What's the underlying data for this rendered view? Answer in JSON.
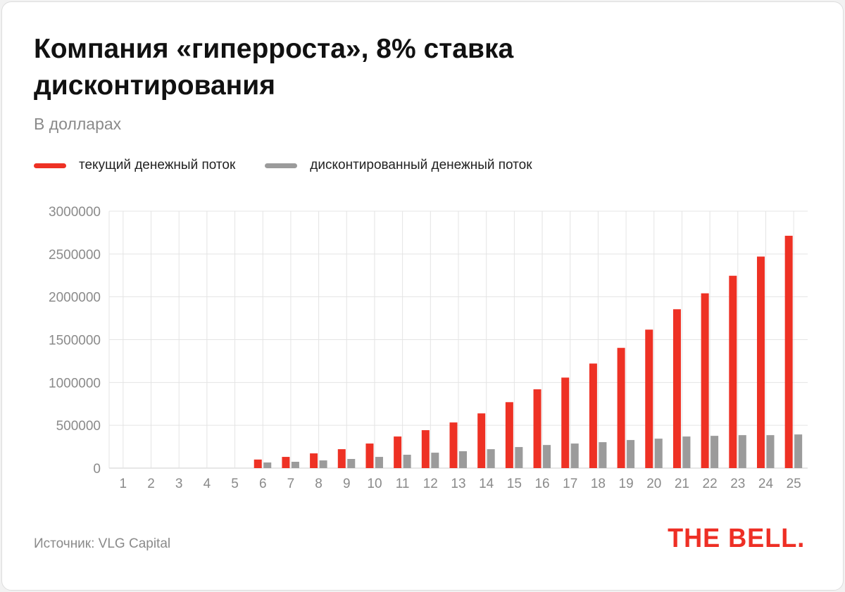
{
  "header": {
    "title": "Компания «гиперроста», 8% ставка дисконтирования",
    "subtitle": "В долларах"
  },
  "footer": {
    "source": "Источник: VLG Capital",
    "logo": "THE BELL."
  },
  "colors": {
    "current": "#ee3124",
    "discounted": "#9b9b9b",
    "logo": "#ee2f25"
  },
  "chart_data": {
    "type": "bar",
    "title": "Компания «гиперроста», 8% ставка дисконтирования",
    "subtitle": "В долларах",
    "xlabel": "",
    "ylabel": "",
    "ylim": [
      0,
      3000000
    ],
    "yticks": [
      "0",
      "500000",
      "1000000",
      "1500000",
      "2000000",
      "2500000",
      "3000000"
    ],
    "grid": true,
    "legend_placement": "top-left",
    "categories": [
      "1",
      "2",
      "3",
      "4",
      "5",
      "6",
      "7",
      "8",
      "9",
      "10",
      "11",
      "12",
      "13",
      "14",
      "15",
      "16",
      "17",
      "18",
      "19",
      "20",
      "21",
      "22",
      "23",
      "24",
      "25"
    ],
    "series": [
      {
        "name": "текущий денежный поток",
        "color": "#ee3124",
        "values": [
          0,
          0,
          0,
          0,
          0,
          100000,
          131000,
          172000,
          221000,
          287000,
          369000,
          443000,
          533000,
          639000,
          770000,
          920000,
          1057000,
          1221000,
          1404000,
          1617000,
          1855000,
          2041000,
          2246000,
          2470000,
          2713000
        ]
      },
      {
        "name": "дисконтированный денежный поток",
        "color": "#9b9b9b",
        "values": [
          0,
          0,
          0,
          0,
          0,
          66000,
          74000,
          90000,
          107000,
          131000,
          156000,
          180000,
          197000,
          221000,
          246000,
          270000,
          287000,
          303000,
          328000,
          344000,
          369000,
          377000,
          385000,
          385000,
          393000
        ]
      }
    ]
  }
}
